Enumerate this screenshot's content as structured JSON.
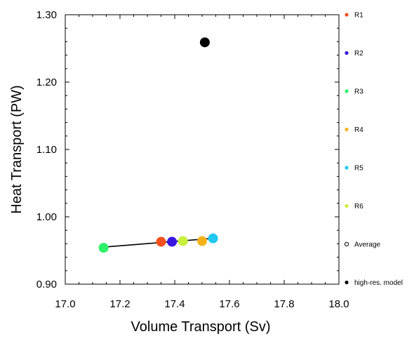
{
  "chart_data": {
    "type": "scatter",
    "title": "",
    "xlabel": "Volume Transport (Sv)",
    "ylabel": "Heat Transport (PW)",
    "xlim": [
      17.0,
      18.0
    ],
    "ylim": [
      0.9,
      1.3
    ],
    "xticks": [
      "17.0",
      "17.2",
      "17.4",
      "17.6",
      "17.8",
      "18.0"
    ],
    "yticks": [
      "0.90",
      "1.00",
      "1.10",
      "1.20",
      "1.30"
    ],
    "grid": false,
    "legend_position": "right",
    "series": [
      {
        "name": "R1",
        "color": "#f4511e",
        "marker": "filled-circle",
        "x": 17.35,
        "y": 0.963
      },
      {
        "name": "R2",
        "color": "#3a16e0",
        "marker": "filled-circle",
        "x": 17.39,
        "y": 0.963
      },
      {
        "name": "R3",
        "color": "#2ef06a",
        "marker": "filled-circle",
        "x": 17.14,
        "y": 0.954
      },
      {
        "name": "R4",
        "color": "#f5b21b",
        "marker": "filled-circle",
        "x": 17.5,
        "y": 0.964
      },
      {
        "name": "R5",
        "color": "#1ec8f0",
        "marker": "filled-circle",
        "x": 17.54,
        "y": 0.968
      },
      {
        "name": "R6",
        "color": "#c8f03c",
        "marker": "filled-circle",
        "x": 17.43,
        "y": 0.964
      },
      {
        "name": "Average",
        "color": "#000000",
        "marker": "open-circle"
      },
      {
        "name": "high-res. model",
        "color": "#000000",
        "marker": "filled-circle",
        "x": 17.51,
        "y": 1.259
      }
    ],
    "fit_line": {
      "color": "#000000",
      "x": [
        17.14,
        17.54
      ],
      "y": [
        0.955,
        0.968
      ]
    }
  }
}
